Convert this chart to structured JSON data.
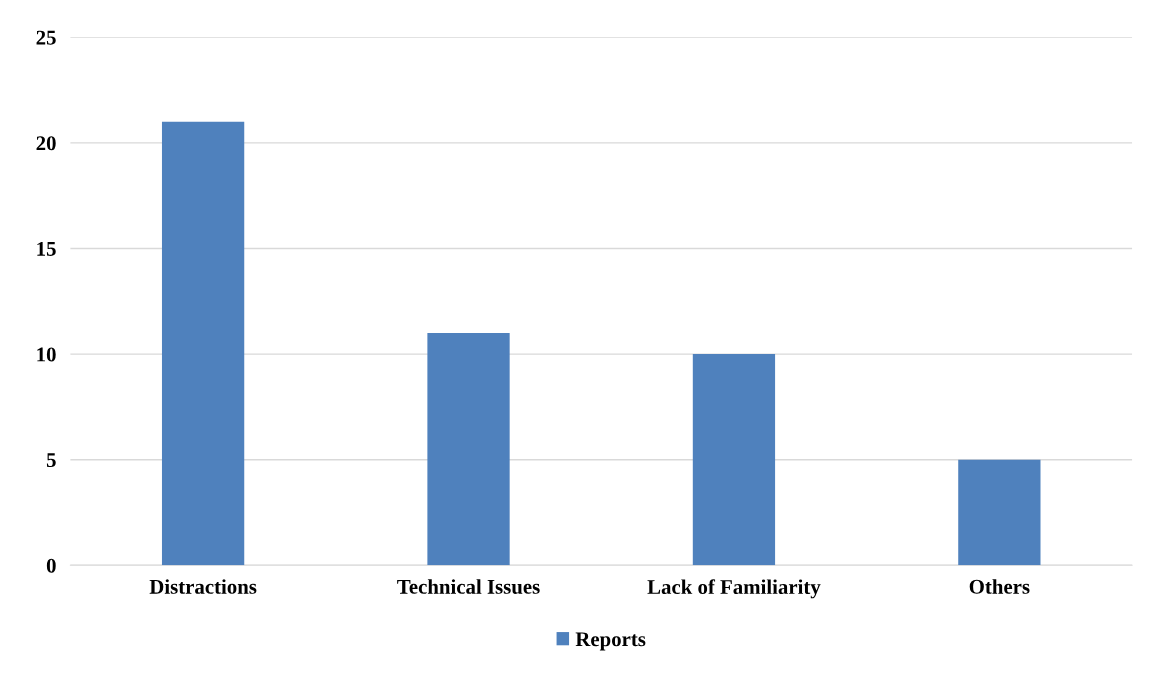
{
  "chart_data": {
    "type": "bar",
    "categories": [
      "Distractions",
      "Technical Issues",
      "Lack of Familiarity",
      "Others"
    ],
    "series": [
      {
        "name": "Reports",
        "color": "#4f81bd",
        "values": [
          21,
          11,
          10,
          5
        ]
      }
    ],
    "ylim": [
      0,
      25
    ],
    "yticks": [
      0,
      5,
      10,
      15,
      20,
      25
    ],
    "grid": "y",
    "legend": "bottom"
  }
}
